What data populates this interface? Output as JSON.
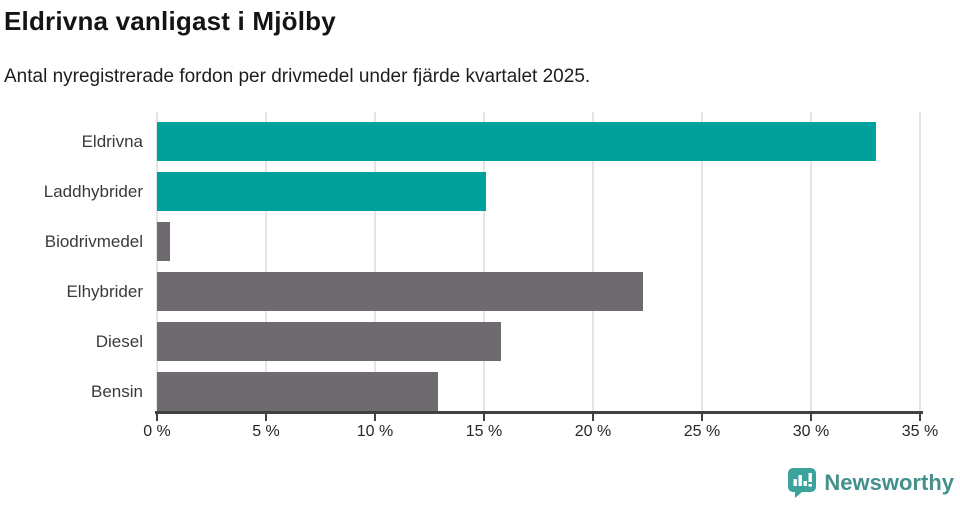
{
  "chart_data": {
    "type": "bar",
    "orientation": "horizontal",
    "title": "Eldrivna vanligast i Mjölby",
    "subtitle": "Antal nyregistrerade fordon per drivmedel under fjärde kvartalet 2025.",
    "categories": [
      "Eldrivna",
      "Laddhybrider",
      "Biodrivmedel",
      "Elhybrider",
      "Diesel",
      "Bensin"
    ],
    "values": [
      33.0,
      15.1,
      0.6,
      22.3,
      15.8,
      12.9
    ],
    "unit": "%",
    "xlim": [
      0,
      35
    ],
    "xticks": [
      0,
      5,
      10,
      15,
      20,
      25,
      30,
      35
    ],
    "xtick_suffix": " %",
    "bar_colors": [
      "#00A09B",
      "#00A09B",
      "#6E6A70",
      "#6E6A70",
      "#6E6A70",
      "#6E6A70"
    ],
    "grid": true,
    "legend": "none",
    "accent_teal": "#00A09B",
    "accent_gray": "#6E6A70"
  },
  "footer": {
    "brand_name": "Newsworthy",
    "brand_color": "#44908D",
    "icon_color": "#3BA39B"
  }
}
